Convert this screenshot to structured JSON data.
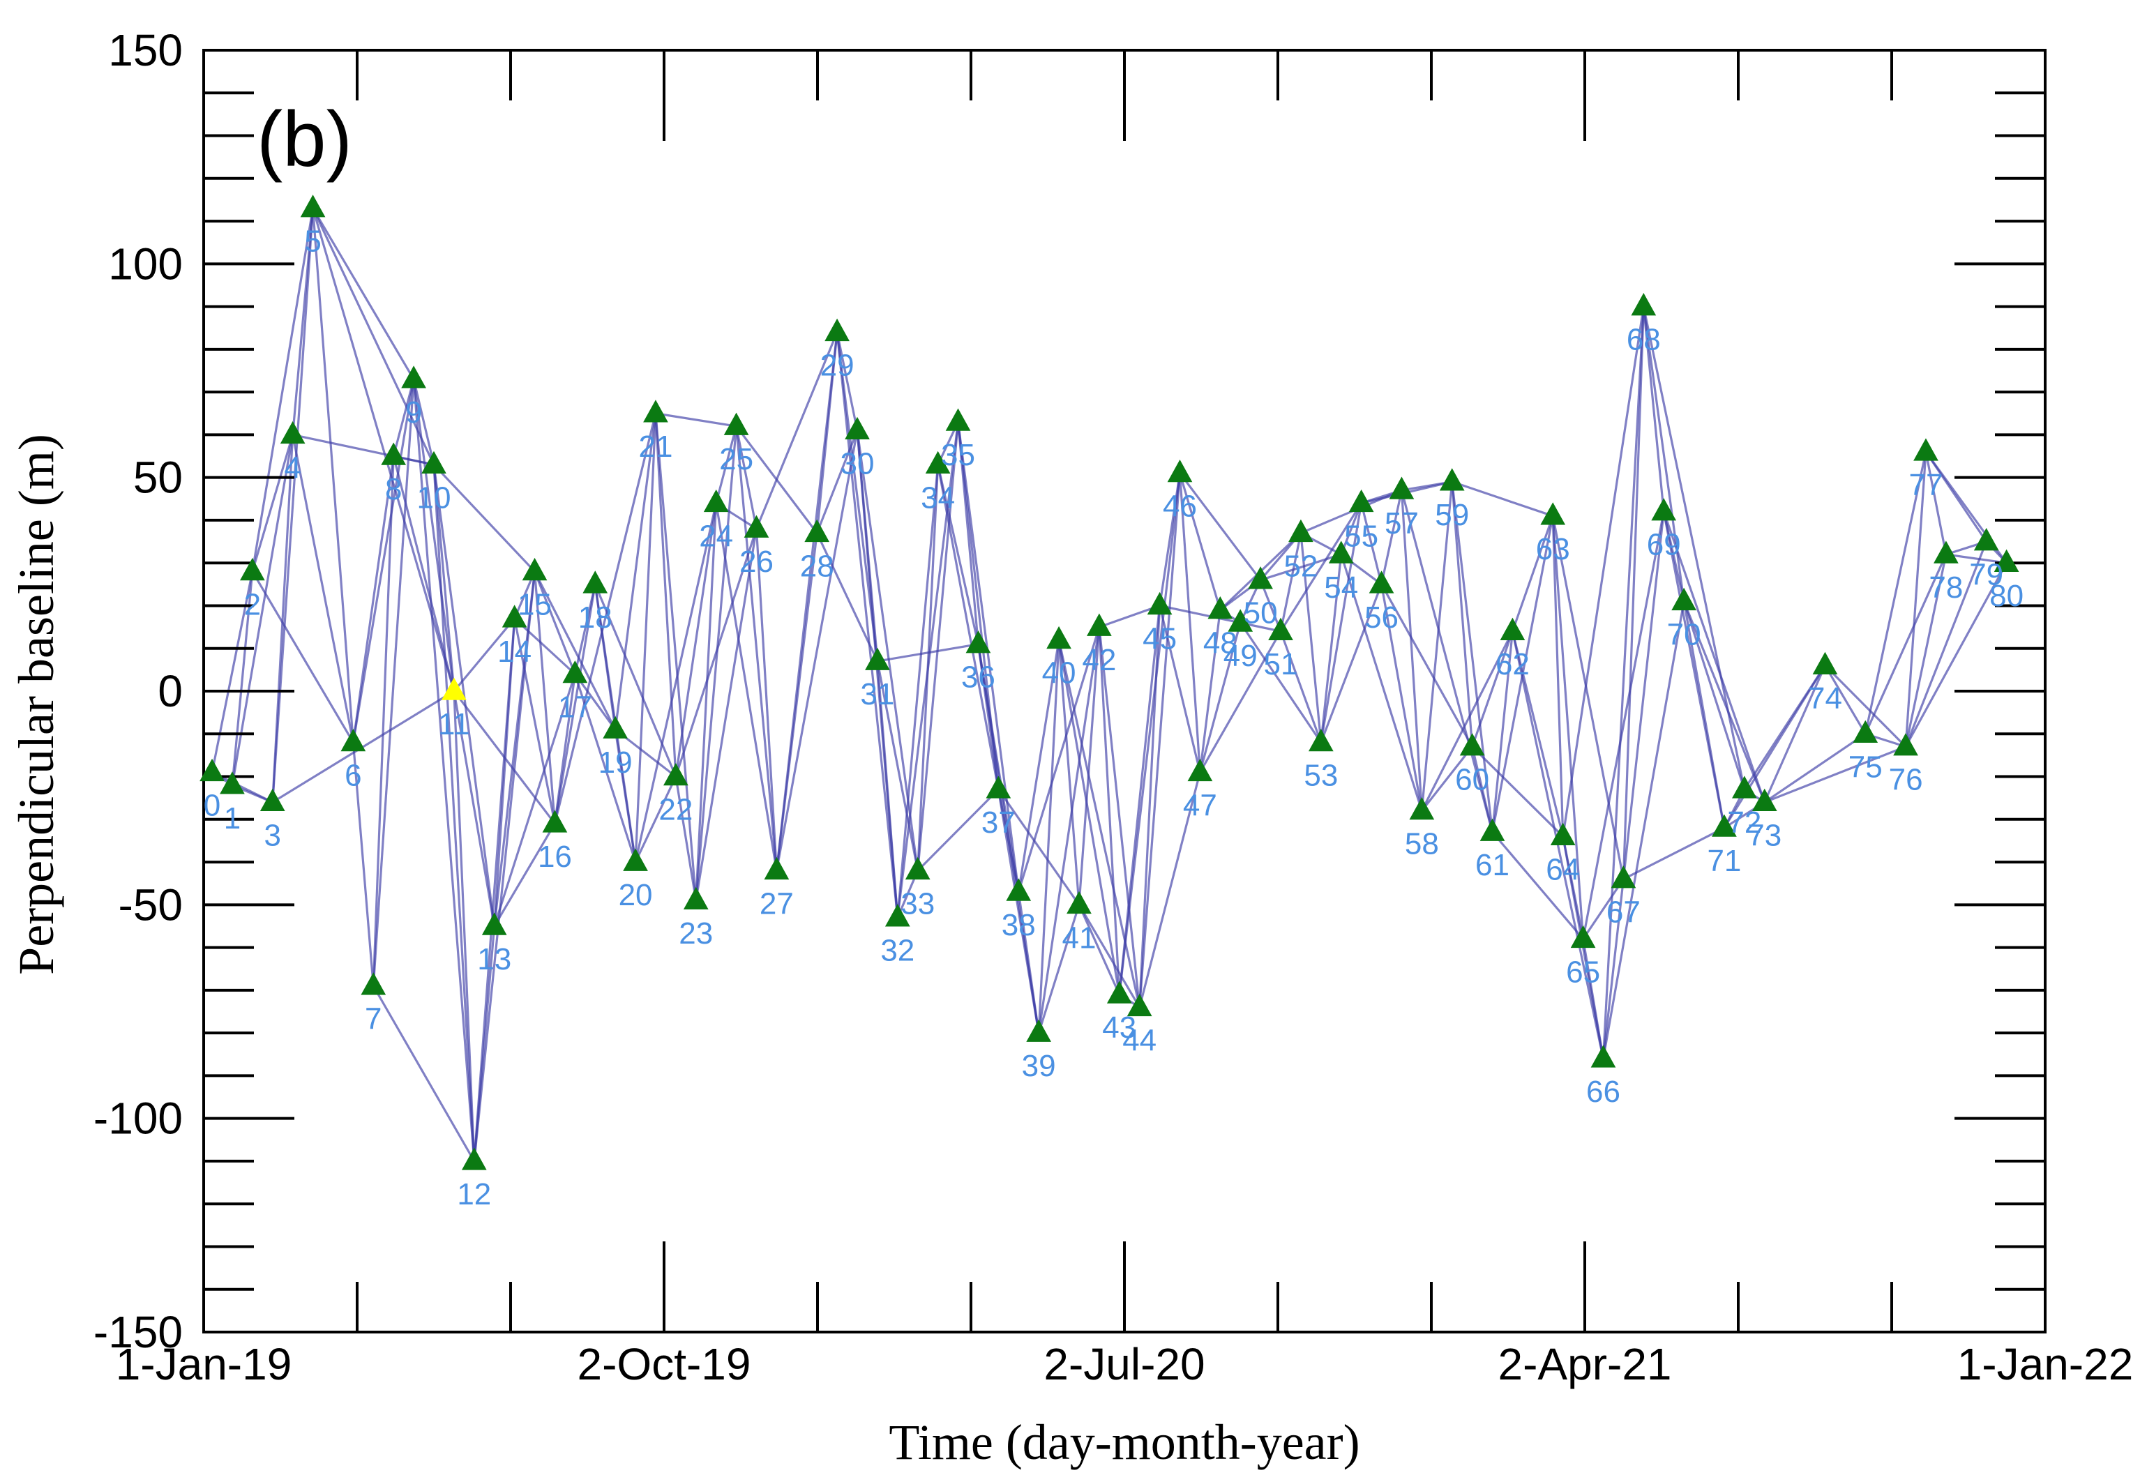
{
  "chart_data": {
    "type": "network-scatter",
    "panel_label": "(b)",
    "xlabel": "Time (day-month-year)",
    "ylabel": "Perpendicular baseline (m)",
    "xlim_days": [
      0,
      1096
    ],
    "ylim": [
      -150,
      150
    ],
    "x_ticks": [
      {
        "day": 0,
        "label": "1-Jan-19"
      },
      {
        "day": 274,
        "label": "2-Oct-19"
      },
      {
        "day": 548,
        "label": "2-Jul-20"
      },
      {
        "day": 822,
        "label": "2-Apr-21"
      },
      {
        "day": 1096,
        "label": "1-Jan-22"
      }
    ],
    "y_ticks": [
      {
        "value": 150,
        "label": "150"
      },
      {
        "value": 100,
        "label": "100"
      },
      {
        "value": 50,
        "label": "50"
      },
      {
        "value": 0,
        "label": "0"
      },
      {
        "value": -50,
        "label": "-50"
      },
      {
        "value": -100,
        "label": "-100"
      },
      {
        "value": -150,
        "label": "-150"
      }
    ],
    "reference_node": 11,
    "colors": {
      "node": "#0b7a12",
      "reference": "#ffff00",
      "edge": "#3c3ca6",
      "label": "#4a90e2",
      "axis": "#000000"
    },
    "nodes": [
      {
        "id": 0,
        "label": "0",
        "day": 5,
        "baseline": -19
      },
      {
        "id": 1,
        "label": "1",
        "day": 17,
        "baseline": -22
      },
      {
        "id": 2,
        "label": "2",
        "day": 29,
        "baseline": 28
      },
      {
        "id": 3,
        "label": "3",
        "day": 41,
        "baseline": -26
      },
      {
        "id": 4,
        "label": "4",
        "day": 53,
        "baseline": 60
      },
      {
        "id": 5,
        "label": "5",
        "day": 65,
        "baseline": 113
      },
      {
        "id": 6,
        "label": "6",
        "day": 89,
        "baseline": -12
      },
      {
        "id": 7,
        "label": "7",
        "day": 101,
        "baseline": -69
      },
      {
        "id": 8,
        "label": "8",
        "day": 113,
        "baseline": 55
      },
      {
        "id": 9,
        "label": "9",
        "day": 125,
        "baseline": 73
      },
      {
        "id": 10,
        "label": "10",
        "day": 137,
        "baseline": 53
      },
      {
        "id": 11,
        "label": "11",
        "day": 149,
        "baseline": 0
      },
      {
        "id": 12,
        "label": "12",
        "day": 161,
        "baseline": -110
      },
      {
        "id": 13,
        "label": "13",
        "day": 173,
        "baseline": -55
      },
      {
        "id": 14,
        "label": "14",
        "day": 185,
        "baseline": 17
      },
      {
        "id": 15,
        "label": "15",
        "day": 197,
        "baseline": 28
      },
      {
        "id": 16,
        "label": "16",
        "day": 209,
        "baseline": -31
      },
      {
        "id": 17,
        "label": "17",
        "day": 221,
        "baseline": 4
      },
      {
        "id": 18,
        "label": "18",
        "day": 233,
        "baseline": 25
      },
      {
        "id": 19,
        "label": "19",
        "day": 245,
        "baseline": -9
      },
      {
        "id": 20,
        "label": "20",
        "day": 257,
        "baseline": -40
      },
      {
        "id": 21,
        "label": "21",
        "day": 269,
        "baseline": 65
      },
      {
        "id": 22,
        "label": "22",
        "day": 281,
        "baseline": -20
      },
      {
        "id": 23,
        "label": "23",
        "day": 293,
        "baseline": -49
      },
      {
        "id": 24,
        "label": "24",
        "day": 305,
        "baseline": 44
      },
      {
        "id": 25,
        "label": "25",
        "day": 317,
        "baseline": 62
      },
      {
        "id": 26,
        "label": "26",
        "day": 329,
        "baseline": 38
      },
      {
        "id": 27,
        "label": "27",
        "day": 341,
        "baseline": -42
      },
      {
        "id": 28,
        "label": "28",
        "day": 365,
        "baseline": 37
      },
      {
        "id": 29,
        "label": "29",
        "day": 377,
        "baseline": 84
      },
      {
        "id": 30,
        "label": "30",
        "day": 389,
        "baseline": 61
      },
      {
        "id": 31,
        "label": "31",
        "day": 401,
        "baseline": 7
      },
      {
        "id": 32,
        "label": "32",
        "day": 413,
        "baseline": -53
      },
      {
        "id": 33,
        "label": "33",
        "day": 425,
        "baseline": -42
      },
      {
        "id": 34,
        "label": "34",
        "day": 437,
        "baseline": 53
      },
      {
        "id": 35,
        "label": "35",
        "day": 449,
        "baseline": 63
      },
      {
        "id": 36,
        "label": "36",
        "day": 461,
        "baseline": 11
      },
      {
        "id": 37,
        "label": "37",
        "day": 473,
        "baseline": -23
      },
      {
        "id": 38,
        "label": "38",
        "day": 485,
        "baseline": -47
      },
      {
        "id": 39,
        "label": "39",
        "day": 497,
        "baseline": -80
      },
      {
        "id": 40,
        "label": "40",
        "day": 509,
        "baseline": 12
      },
      {
        "id": 41,
        "label": "41",
        "day": 521,
        "baseline": -50
      },
      {
        "id": 42,
        "label": "42",
        "day": 533,
        "baseline": 15
      },
      {
        "id": 43,
        "label": "43",
        "day": 545,
        "baseline": -71
      },
      {
        "id": 44,
        "label": "44",
        "day": 557,
        "baseline": -74
      },
      {
        "id": 45,
        "label": "45",
        "day": 569,
        "baseline": 20
      },
      {
        "id": 46,
        "label": "46",
        "day": 581,
        "baseline": 51
      },
      {
        "id": 47,
        "label": "47",
        "day": 593,
        "baseline": -19
      },
      {
        "id": 48,
        "label": "48",
        "day": 605,
        "baseline": 19
      },
      {
        "id": 49,
        "label": "49",
        "day": 617,
        "baseline": 16
      },
      {
        "id": 50,
        "label": "50",
        "day": 629,
        "baseline": 26
      },
      {
        "id": 51,
        "label": "51",
        "day": 641,
        "baseline": 14
      },
      {
        "id": 52,
        "label": "52",
        "day": 653,
        "baseline": 37
      },
      {
        "id": 53,
        "label": "53",
        "day": 665,
        "baseline": -12
      },
      {
        "id": 54,
        "label": "54",
        "day": 677,
        "baseline": 32
      },
      {
        "id": 55,
        "label": "55",
        "day": 689,
        "baseline": 44
      },
      {
        "id": 56,
        "label": "56",
        "day": 701,
        "baseline": 25
      },
      {
        "id": 57,
        "label": "57",
        "day": 713,
        "baseline": 47
      },
      {
        "id": 58,
        "label": "58",
        "day": 725,
        "baseline": -28
      },
      {
        "id": 59,
        "label": "59",
        "day": 743,
        "baseline": 49
      },
      {
        "id": 60,
        "label": "60",
        "day": 755,
        "baseline": -13
      },
      {
        "id": 61,
        "label": "61",
        "day": 767,
        "baseline": -33
      },
      {
        "id": 62,
        "label": "62",
        "day": 779,
        "baseline": 14
      },
      {
        "id": 63,
        "label": "63",
        "day": 803,
        "baseline": 41
      },
      {
        "id": 64,
        "label": "64",
        "day": 809,
        "baseline": -34
      },
      {
        "id": 65,
        "label": "65",
        "day": 821,
        "baseline": -58
      },
      {
        "id": 66,
        "label": "66",
        "day": 833,
        "baseline": -86
      },
      {
        "id": 67,
        "label": "67",
        "day": 845,
        "baseline": -44
      },
      {
        "id": 68,
        "label": "68",
        "day": 857,
        "baseline": 90
      },
      {
        "id": 69,
        "label": "69",
        "day": 869,
        "baseline": 42
      },
      {
        "id": 70,
        "label": "70",
        "day": 881,
        "baseline": 21
      },
      {
        "id": 71,
        "label": "71",
        "day": 905,
        "baseline": -32
      },
      {
        "id": 72,
        "label": "72",
        "day": 917,
        "baseline": -23
      },
      {
        "id": 73,
        "label": "73",
        "day": 929,
        "baseline": -26
      },
      {
        "id": 74,
        "label": "74",
        "day": 965,
        "baseline": 6
      },
      {
        "id": 75,
        "label": "75",
        "day": 989,
        "baseline": -10
      },
      {
        "id": 76,
        "label": "76",
        "day": 1013,
        "baseline": -13
      },
      {
        "id": 77,
        "label": "77",
        "day": 1025,
        "baseline": 56
      },
      {
        "id": 78,
        "label": "78",
        "day": 1037,
        "baseline": 32
      },
      {
        "id": 79,
        "label": "79",
        "day": 1061,
        "baseline": 35
      },
      {
        "id": 80,
        "label": "80",
        "day": 1073,
        "baseline": 30
      }
    ],
    "edges": [
      [
        0,
        1
      ],
      [
        0,
        2
      ],
      [
        0,
        3
      ],
      [
        1,
        2
      ],
      [
        1,
        4
      ],
      [
        1,
        3
      ],
      [
        2,
        4
      ],
      [
        2,
        5
      ],
      [
        2,
        6
      ],
      [
        3,
        4
      ],
      [
        3,
        5
      ],
      [
        3,
        11
      ],
      [
        4,
        5
      ],
      [
        4,
        6
      ],
      [
        4,
        10
      ],
      [
        5,
        6
      ],
      [
        5,
        9
      ],
      [
        5,
        11
      ],
      [
        5,
        10
      ],
      [
        6,
        7
      ],
      [
        6,
        8
      ],
      [
        6,
        9
      ],
      [
        7,
        8
      ],
      [
        7,
        9
      ],
      [
        7,
        12
      ],
      [
        8,
        9
      ],
      [
        8,
        10
      ],
      [
        8,
        11
      ],
      [
        9,
        10
      ],
      [
        9,
        11
      ],
      [
        9,
        12
      ],
      [
        10,
        11
      ],
      [
        10,
        12
      ],
      [
        10,
        13
      ],
      [
        10,
        15
      ],
      [
        11,
        12
      ],
      [
        11,
        13
      ],
      [
        11,
        14
      ],
      [
        11,
        16
      ],
      [
        12,
        13
      ],
      [
        12,
        14
      ],
      [
        12,
        15
      ],
      [
        13,
        14
      ],
      [
        13,
        15
      ],
      [
        13,
        16
      ],
      [
        13,
        17
      ],
      [
        14,
        15
      ],
      [
        14,
        16
      ],
      [
        14,
        17
      ],
      [
        15,
        16
      ],
      [
        15,
        17
      ],
      [
        15,
        19
      ],
      [
        16,
        17
      ],
      [
        16,
        18
      ],
      [
        16,
        21
      ],
      [
        17,
        18
      ],
      [
        17,
        19
      ],
      [
        17,
        20
      ],
      [
        18,
        19
      ],
      [
        18,
        20
      ],
      [
        18,
        22
      ],
      [
        19,
        20
      ],
      [
        19,
        21
      ],
      [
        19,
        22
      ],
      [
        20,
        21
      ],
      [
        20,
        22
      ],
      [
        20,
        24
      ],
      [
        21,
        22
      ],
      [
        21,
        23
      ],
      [
        21,
        25
      ],
      [
        22,
        23
      ],
      [
        22,
        24
      ],
      [
        22,
        26
      ],
      [
        23,
        24
      ],
      [
        23,
        25
      ],
      [
        23,
        26
      ],
      [
        24,
        25
      ],
      [
        24,
        26
      ],
      [
        24,
        27
      ],
      [
        25,
        26
      ],
      [
        25,
        27
      ],
      [
        25,
        28
      ],
      [
        26,
        27
      ],
      [
        26,
        29
      ],
      [
        27,
        28
      ],
      [
        27,
        29
      ],
      [
        27,
        30
      ],
      [
        28,
        29
      ],
      [
        28,
        30
      ],
      [
        28,
        31
      ],
      [
        29,
        30
      ],
      [
        29,
        31
      ],
      [
        29,
        32
      ],
      [
        30,
        31
      ],
      [
        30,
        32
      ],
      [
        30,
        33
      ],
      [
        31,
        32
      ],
      [
        31,
        33
      ],
      [
        31,
        36
      ],
      [
        32,
        33
      ],
      [
        32,
        34
      ],
      [
        32,
        35
      ],
      [
        33,
        34
      ],
      [
        33,
        35
      ],
      [
        33,
        37
      ],
      [
        34,
        35
      ],
      [
        34,
        36
      ],
      [
        34,
        37
      ],
      [
        35,
        36
      ],
      [
        35,
        37
      ],
      [
        35,
        38
      ],
      [
        36,
        37
      ],
      [
        36,
        38
      ],
      [
        36,
        39
      ],
      [
        37,
        38
      ],
      [
        37,
        39
      ],
      [
        37,
        41
      ],
      [
        38,
        39
      ],
      [
        38,
        40
      ],
      [
        38,
        42
      ],
      [
        39,
        40
      ],
      [
        39,
        41
      ],
      [
        39,
        42
      ],
      [
        40,
        41
      ],
      [
        40,
        43
      ],
      [
        40,
        44
      ],
      [
        41,
        42
      ],
      [
        41,
        43
      ],
      [
        41,
        44
      ],
      [
        42,
        43
      ],
      [
        42,
        44
      ],
      [
        42,
        45
      ],
      [
        43,
        44
      ],
      [
        43,
        45
      ],
      [
        43,
        46
      ],
      [
        44,
        45
      ],
      [
        44,
        46
      ],
      [
        44,
        47
      ],
      [
        45,
        46
      ],
      [
        45,
        47
      ],
      [
        45,
        49
      ],
      [
        46,
        47
      ],
      [
        46,
        48
      ],
      [
        46,
        50
      ],
      [
        47,
        48
      ],
      [
        47,
        49
      ],
      [
        47,
        51
      ],
      [
        48,
        49
      ],
      [
        48,
        50
      ],
      [
        48,
        52
      ],
      [
        49,
        50
      ],
      [
        49,
        51
      ],
      [
        49,
        53
      ],
      [
        50,
        51
      ],
      [
        50,
        52
      ],
      [
        50,
        54
      ],
      [
        51,
        52
      ],
      [
        51,
        53
      ],
      [
        51,
        55
      ],
      [
        52,
        53
      ],
      [
        52,
        54
      ],
      [
        52,
        57
      ],
      [
        53,
        54
      ],
      [
        53,
        55
      ],
      [
        53,
        56
      ],
      [
        54,
        55
      ],
      [
        54,
        56
      ],
      [
        54,
        58
      ],
      [
        55,
        56
      ],
      [
        55,
        57
      ],
      [
        55,
        59
      ],
      [
        56,
        57
      ],
      [
        56,
        58
      ],
      [
        56,
        60
      ],
      [
        57,
        58
      ],
      [
        57,
        59
      ],
      [
        57,
        61
      ],
      [
        58,
        59
      ],
      [
        58,
        60
      ],
      [
        58,
        62
      ],
      [
        59,
        60
      ],
      [
        59,
        61
      ],
      [
        59,
        63
      ],
      [
        60,
        61
      ],
      [
        60,
        62
      ],
      [
        60,
        64
      ],
      [
        61,
        62
      ],
      [
        61,
        63
      ],
      [
        61,
        65
      ],
      [
        62,
        63
      ],
      [
        62,
        64
      ],
      [
        62,
        66
      ],
      [
        63,
        64
      ],
      [
        63,
        65
      ],
      [
        63,
        67
      ],
      [
        64,
        65
      ],
      [
        64,
        66
      ],
      [
        64,
        68
      ],
      [
        65,
        66
      ],
      [
        65,
        67
      ],
      [
        65,
        69
      ],
      [
        66,
        67
      ],
      [
        66,
        68
      ],
      [
        66,
        70
      ],
      [
        67,
        68
      ],
      [
        67,
        69
      ],
      [
        67,
        71
      ],
      [
        68,
        69
      ],
      [
        68,
        70
      ],
      [
        68,
        72
      ],
      [
        69,
        70
      ],
      [
        69,
        71
      ],
      [
        69,
        73
      ],
      [
        70,
        71
      ],
      [
        70,
        72
      ],
      [
        70,
        73
      ],
      [
        71,
        72
      ],
      [
        71,
        73
      ],
      [
        71,
        74
      ],
      [
        72,
        73
      ],
      [
        72,
        74
      ],
      [
        73,
        74
      ],
      [
        73,
        75
      ],
      [
        73,
        76
      ],
      [
        74,
        75
      ],
      [
        74,
        76
      ],
      [
        75,
        76
      ],
      [
        75,
        77
      ],
      [
        75,
        78
      ],
      [
        76,
        77
      ],
      [
        76,
        78
      ],
      [
        76,
        79
      ],
      [
        76,
        80
      ],
      [
        77,
        78
      ],
      [
        77,
        79
      ],
      [
        77,
        80
      ],
      [
        78,
        79
      ],
      [
        78,
        80
      ],
      [
        79,
        80
      ]
    ]
  }
}
